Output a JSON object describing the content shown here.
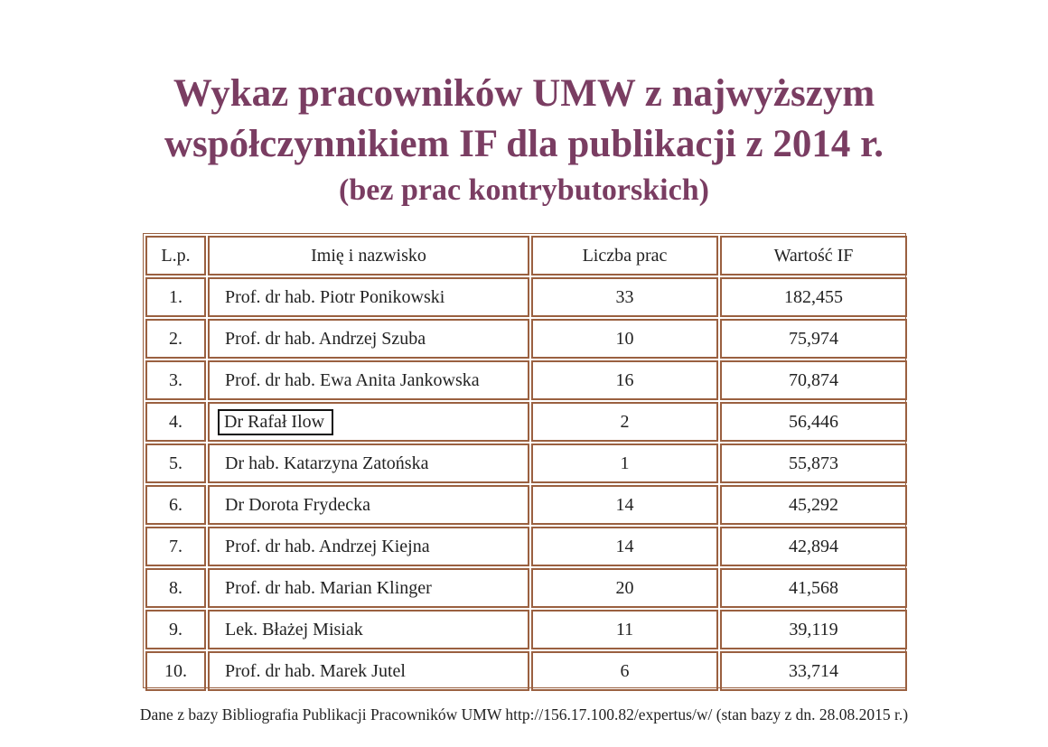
{
  "title": {
    "line1": "Wykaz pracowników UMW z najwyższym",
    "line2": "współczynnikiem IF dla publikacji z 2014 r.",
    "subtitle": "(bez prac kontrybutorskich)"
  },
  "table": {
    "headers": {
      "lp": "L.p.",
      "name": "Imię i nazwisko",
      "count": "Liczba prac",
      "if": "Wartość IF"
    },
    "rows": [
      {
        "lp": "1.",
        "name": "Prof. dr hab. Piotr Ponikowski",
        "count": "33",
        "if": "182,455"
      },
      {
        "lp": "2.",
        "name": "Prof. dr hab. Andrzej Szuba",
        "count": "10",
        "if": "75,974"
      },
      {
        "lp": "3.",
        "name": "Prof. dr hab. Ewa Anita Jankowska",
        "count": "16",
        "if": "70,874"
      },
      {
        "lp": "4.",
        "name": "Dr Rafał Ilow",
        "count": "2",
        "if": "56,446"
      },
      {
        "lp": "5.",
        "name": "Dr hab. Katarzyna Zatońska",
        "count": "1",
        "if": "55,873"
      },
      {
        "lp": "6.",
        "name": "Dr Dorota Frydecka",
        "count": "14",
        "if": "45,292"
      },
      {
        "lp": "7.",
        "name": "Prof. dr hab. Andrzej Kiejna",
        "count": "14",
        "if": "42,894"
      },
      {
        "lp": "8.",
        "name": "Prof. dr hab. Marian Klinger",
        "count": "20",
        "if": "41,568"
      },
      {
        "lp": "9.",
        "name": "Lek. Błażej Misiak",
        "count": "11",
        "if": "39,119"
      },
      {
        "lp": "10.",
        "name": "Prof. dr hab. Marek Jutel",
        "count": "6",
        "if": "33,714"
      }
    ]
  },
  "footer": {
    "source": "Dane z bazy Bibliografia Publikacji Pracowników UMW http://156.17.100.82/expertus/w/ (stan bazy z dn. 28.08.2015 r.)"
  },
  "colors": {
    "title": "#7a3d62",
    "table_border": "#9a6040",
    "text": "#222222"
  }
}
